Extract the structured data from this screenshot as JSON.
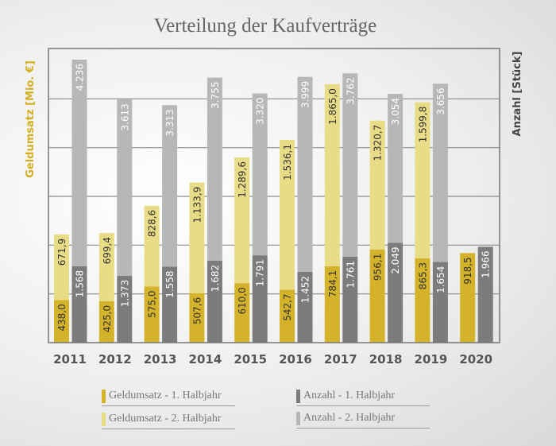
{
  "chart_data": {
    "type": "bar",
    "title": "Verteilung der Kaufverträge",
    "ylabel_left": "Geldumsatz [Mio. €]",
    "ylabel_right": "Anzahl [Stück]",
    "categories": [
      "2011",
      "2012",
      "2013",
      "2014",
      "2015",
      "2016",
      "2017",
      "2018",
      "2019",
      "2020"
    ],
    "stacked": true,
    "grid": true,
    "ylim_left": [
      0,
      3000
    ],
    "ylim_right": [
      0,
      6000
    ],
    "series": [
      {
        "name": "Geldumsatz - 1. Halbjahr",
        "stack": "geld",
        "axis": "left",
        "color": "#d4b22a",
        "labels": [
          "438,0",
          "425,0",
          "575,0",
          "507,6",
          "610,0",
          "542,7",
          "784,1",
          "956,1",
          "865,3",
          "918,5"
        ],
        "values": [
          438.0,
          425.0,
          575.0,
          507.6,
          610.0,
          542.7,
          784.1,
          956.1,
          865.3,
          918.5
        ]
      },
      {
        "name": "Geldumsatz - 2. Halbjahr",
        "stack": "geld",
        "axis": "left",
        "color": "#e8dc86",
        "labels": [
          "671,9",
          "699,4",
          "828,6",
          "1.133,9",
          "1.289,6",
          "1.536,1",
          "1.865,0",
          "1.320,7",
          "1.599,8",
          null
        ],
        "values": [
          671.9,
          699.4,
          828.6,
          1133.9,
          1289.6,
          1536.1,
          1865.0,
          1320.7,
          1599.8,
          null
        ]
      },
      {
        "name": "Anzahl - 1. Halbjahr",
        "stack": "anzahl",
        "axis": "right",
        "color": "#7a7c7e",
        "labels": [
          "1.568",
          "1.373",
          "1.558",
          "1.682",
          "1.791",
          "1.452",
          "1.761",
          "2.049",
          "1.654",
          "1.966"
        ],
        "values": [
          1568,
          1373,
          1558,
          1682,
          1791,
          1452,
          1761,
          2049,
          1654,
          1966
        ]
      },
      {
        "name": "Anzahl - 2. Halbjahr",
        "stack": "anzahl",
        "axis": "right",
        "color": "#b6b7b9",
        "labels": [
          "4.236",
          "3.613",
          "3.313",
          "3.755",
          "3.320",
          "3.999",
          "3.762",
          "3.054",
          "3.656",
          null
        ],
        "values": [
          4236,
          3613,
          3313,
          3755,
          3320,
          3999,
          3762,
          3054,
          3656,
          null
        ]
      }
    ],
    "legend": "bottom"
  }
}
